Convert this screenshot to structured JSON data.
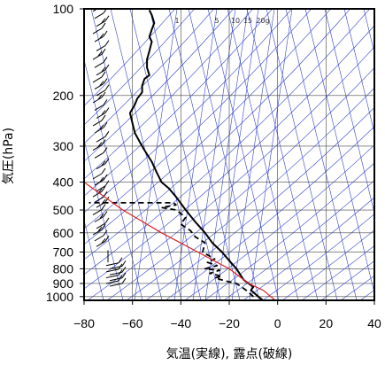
{
  "chart_data": {
    "type": "line",
    "title": "",
    "xlabel": "気温(実線), 露点(破線)",
    "ylabel": "気圧(hPa)",
    "xlim": [
      -80,
      40
    ],
    "ylim": [
      1030,
      100
    ],
    "y_scale": "log",
    "grid": true,
    "x_ticks": [
      "−80",
      "−60",
      "−40",
      "−20",
      "0",
      "20",
      "40"
    ],
    "x_tick_values": [
      -80,
      -60,
      -40,
      -20,
      0,
      20,
      40
    ],
    "y_ticks": [
      "100",
      "200",
      "300",
      "400",
      "500",
      "600",
      "700",
      "800",
      "900",
      "1000"
    ],
    "y_tick_values": [
      100,
      200,
      300,
      400,
      500,
      600,
      700,
      800,
      900,
      1000
    ],
    "mixing_ratio_labels": [
      "1",
      "5",
      "10",
      "15",
      "20g"
    ],
    "mixing_ratio_values": [
      1,
      5,
      10,
      15,
      20
    ],
    "colors": {
      "temperature": "#000000",
      "dewpoint": "#000000",
      "parcel": "#dd2222",
      "adiabats": "#3344cc",
      "grid": "#444444"
    },
    "series": [
      {
        "key": "temperature",
        "style": "solid",
        "points": [
          [
            -6,
            1030
          ],
          [
            -8,
            1000
          ],
          [
            -11,
            950
          ],
          [
            -10,
            925
          ],
          [
            -12,
            900
          ],
          [
            -14,
            875
          ],
          [
            -15,
            850
          ],
          [
            -17,
            800
          ],
          [
            -20,
            750
          ],
          [
            -23,
            700
          ],
          [
            -27,
            650
          ],
          [
            -30,
            600
          ],
          [
            -34,
            550
          ],
          [
            -38,
            500
          ],
          [
            -42,
            450
          ],
          [
            -45,
            420
          ],
          [
            -48,
            400
          ],
          [
            -50,
            370
          ],
          [
            -52,
            340
          ],
          [
            -55,
            310
          ],
          [
            -57,
            290
          ],
          [
            -59,
            270
          ],
          [
            -60,
            250
          ],
          [
            -61,
            230
          ],
          [
            -59,
            215
          ],
          [
            -58,
            205
          ],
          [
            -56,
            195
          ],
          [
            -56,
            185
          ],
          [
            -55,
            175
          ],
          [
            -53,
            170
          ],
          [
            -54,
            160
          ],
          [
            -54,
            150
          ],
          [
            -53,
            140
          ],
          [
            -52,
            130
          ],
          [
            -53,
            125
          ],
          [
            -52,
            118
          ],
          [
            -51,
            112
          ],
          [
            -52,
            105
          ],
          [
            -53,
            101
          ]
        ]
      },
      {
        "key": "dewpoint",
        "style": "dashed",
        "points": [
          [
            -10,
            1000
          ],
          [
            -13,
            950
          ],
          [
            -15,
            925
          ],
          [
            -17,
            900
          ],
          [
            -22,
            880
          ],
          [
            -26,
            860
          ],
          [
            -23,
            850
          ],
          [
            -28,
            830
          ],
          [
            -24,
            810
          ],
          [
            -30,
            800
          ],
          [
            -25,
            780
          ],
          [
            -29,
            760
          ],
          [
            -26,
            740
          ],
          [
            -31,
            700
          ],
          [
            -30,
            650
          ],
          [
            -34,
            620
          ],
          [
            -36,
            590
          ],
          [
            -40,
            560
          ],
          [
            -38,
            530
          ],
          [
            -42,
            500
          ],
          [
            -48,
            490
          ],
          [
            -42,
            480
          ],
          [
            -43,
            472
          ],
          [
            -65,
            472
          ],
          [
            -78,
            472
          ]
        ]
      },
      {
        "key": "parcel",
        "style": "red",
        "points": [
          [
            -1,
            1030
          ],
          [
            -6,
            950
          ],
          [
            -12,
            900
          ],
          [
            -20,
            800
          ],
          [
            -33,
            700
          ],
          [
            -48,
            600
          ],
          [
            -64,
            500
          ],
          [
            -80,
            400
          ],
          [
            -80,
            320
          ]
        ]
      }
    ],
    "wind_barbs": "left column"
  }
}
